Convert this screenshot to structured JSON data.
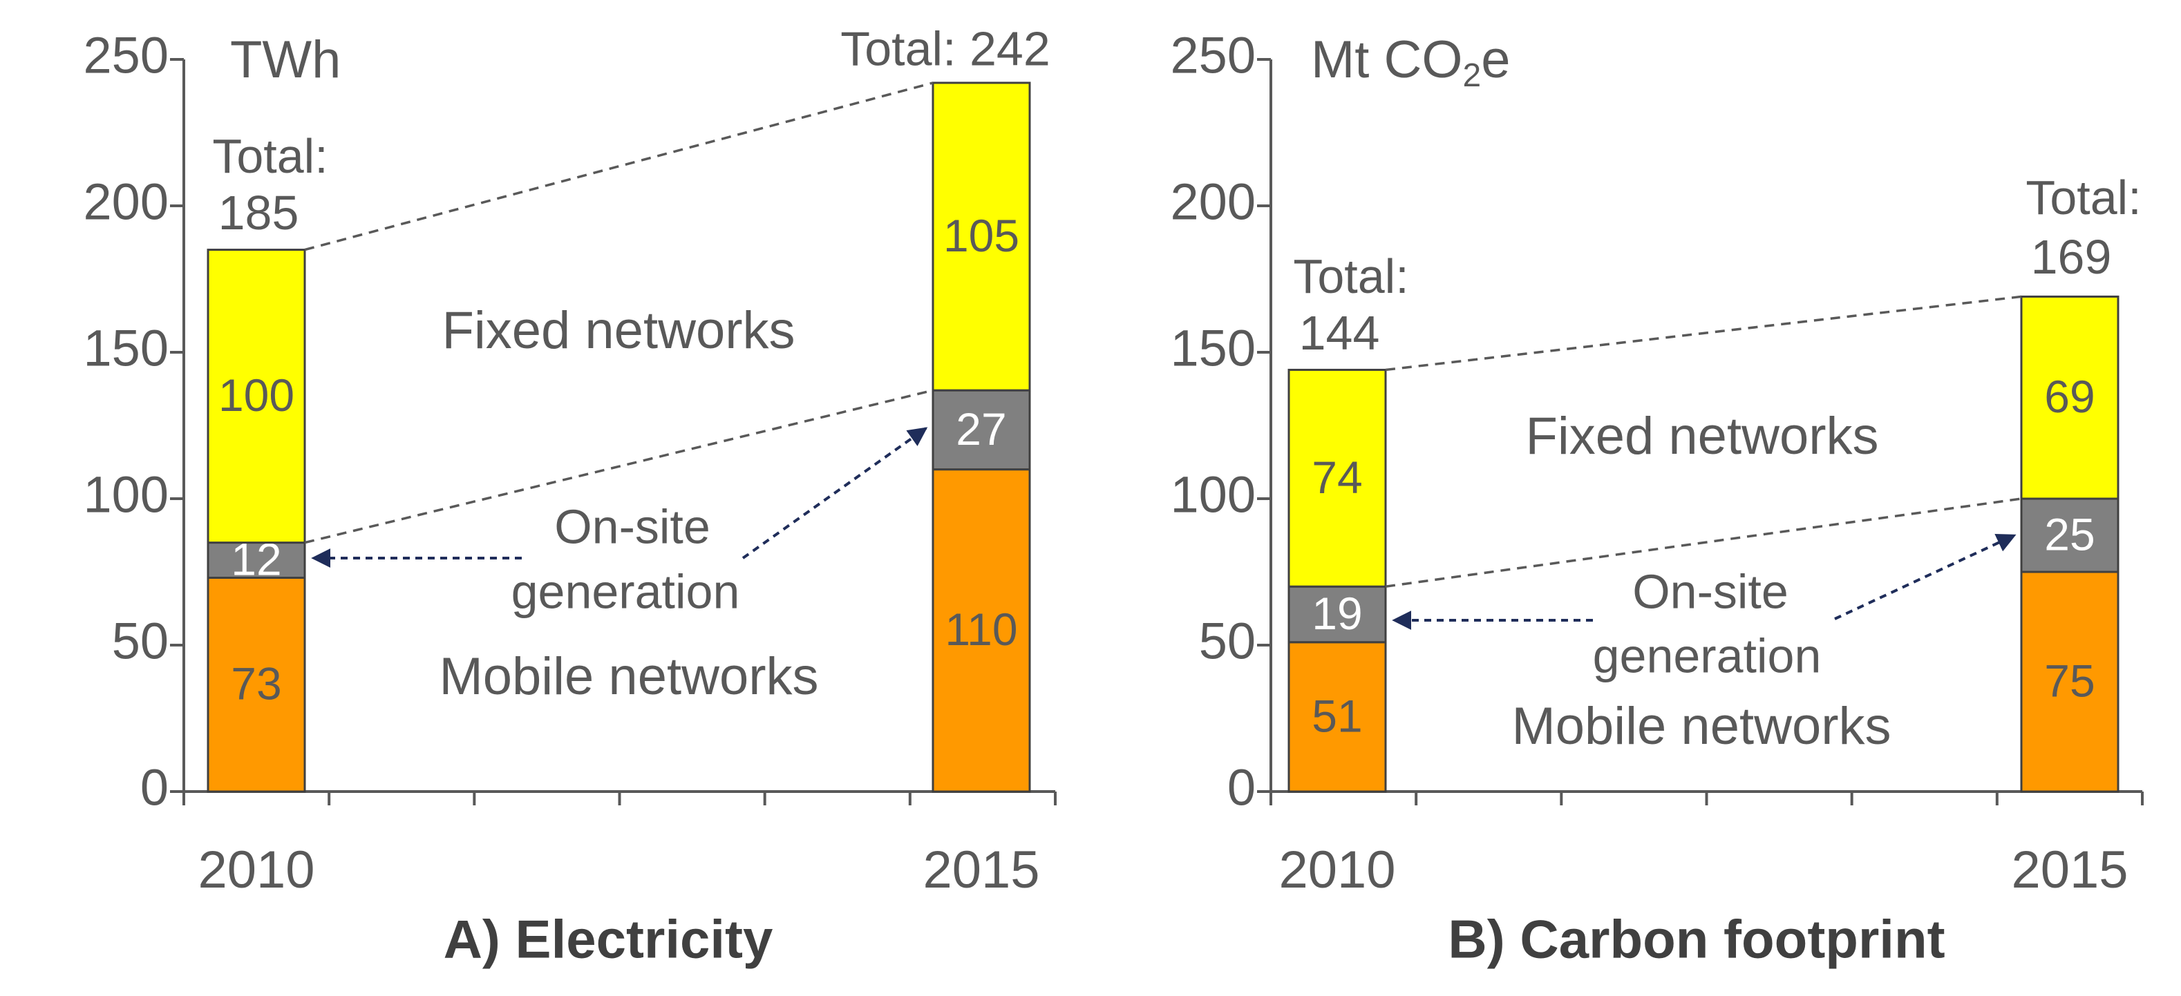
{
  "colors": {
    "mobile": "#FF9900",
    "onsite": "#808080",
    "fixed": "#FFFF00",
    "text": "#595959",
    "axis": "#595959",
    "title": "#404040",
    "arrow": "#1F2D5A"
  },
  "chart_data": [
    {
      "type": "bar",
      "stacked": true,
      "title": "A) Electricity",
      "unit_parts": [
        "TWh"
      ],
      "categories": [
        "2010",
        "2015"
      ],
      "ylim": [
        0,
        250
      ],
      "yticks": [
        "0",
        "50",
        "100",
        "150",
        "200",
        "250"
      ],
      "series": [
        {
          "name": "Mobile networks",
          "values": [
            73,
            110
          ]
        },
        {
          "name": "On-site generation",
          "values": [
            12,
            27
          ]
        },
        {
          "name": "Fixed networks",
          "values": [
            100,
            105
          ]
        }
      ],
      "data_labels": [
        [
          "73",
          "12",
          "100"
        ],
        [
          "110",
          "27",
          "105"
        ]
      ],
      "totals": [
        185,
        242
      ],
      "total_labels": [
        [
          "Total:",
          "185"
        ],
        [
          "Total: 242"
        ]
      ],
      "region_labels": {
        "fixed": "Fixed networks",
        "onsite": [
          "On-site",
          "generation"
        ],
        "mobile": "Mobile networks"
      }
    },
    {
      "type": "bar",
      "stacked": true,
      "title": "B) Carbon footprint",
      "unit_parts": [
        "Mt CO",
        "2",
        "e"
      ],
      "categories": [
        "2010",
        "2015"
      ],
      "ylim": [
        0,
        250
      ],
      "yticks": [
        "0",
        "50",
        "100",
        "150",
        "200",
        "250"
      ],
      "series": [
        {
          "name": "Mobile networks",
          "values": [
            51,
            75
          ]
        },
        {
          "name": "On-site generation",
          "values": [
            19,
            25
          ]
        },
        {
          "name": "Fixed networks",
          "values": [
            74,
            69
          ]
        }
      ],
      "data_labels": [
        [
          "51",
          "19",
          "74"
        ],
        [
          "75",
          "25",
          "69"
        ]
      ],
      "totals": [
        144,
        169
      ],
      "total_labels": [
        [
          "Total:",
          "144"
        ],
        [
          "Total:",
          "169"
        ]
      ],
      "region_labels": {
        "fixed": "Fixed networks",
        "onsite": [
          "On-site",
          "generation"
        ],
        "mobile": "Mobile networks"
      }
    }
  ]
}
